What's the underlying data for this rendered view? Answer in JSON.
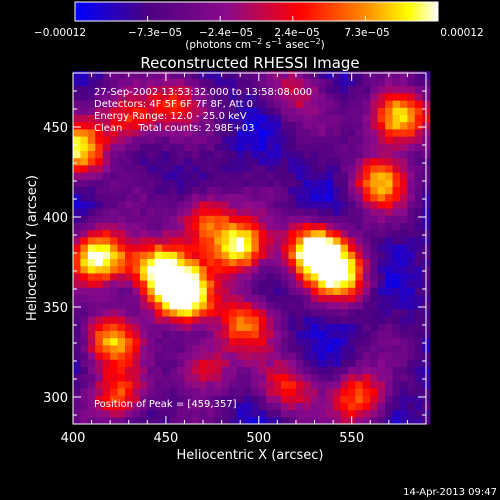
{
  "colorbar": {
    "ticks": [
      "−0.00012",
      "−7.3e−05",
      "−2.4e−05",
      "2.4e−05",
      "7.3e−05",
      "0.00012"
    ],
    "units_main": "(photons cm",
    "units_exp1": "−2",
    "units_mid": " s",
    "units_exp2": "−1",
    "units_tail": " asec",
    "units_exp3": "−2",
    "units_close": ")"
  },
  "chart_data": {
    "type": "heatmap",
    "title": "Reconstructed RHESSI Image",
    "xlabel": "Heliocentric X (arcsec)",
    "ylabel": "Heliocentric Y (arcsec)",
    "xlim": [
      400,
      590
    ],
    "ylim": [
      285,
      480
    ],
    "xticks": [
      "400",
      "450",
      "500",
      "550"
    ],
    "yticks": [
      "300",
      "350",
      "400",
      "450"
    ],
    "colormap": [
      "#0000ff",
      "#4b0082",
      "#8b0a8b",
      "#ff0000",
      "#ff8c00",
      "#ffff00",
      "#ffffff"
    ],
    "annotations": [
      "27-Sep-2002 13:53:32.000 to 13:58:08.000",
      "Detectors: 4F 5F 6F 7F 8F, Att 0",
      "Energy Range: 12.0 - 25.0 keV",
      "Clean     Total counts: 2.98E+03"
    ],
    "peak_label": "Position of Peak = [459,357]",
    "peak": [
      459,
      357
    ],
    "sources": [
      {
        "x": 459,
        "y": 357,
        "amp": 1.0
      },
      {
        "x": 415,
        "y": 378,
        "amp": 0.85
      },
      {
        "x": 445,
        "y": 372,
        "amp": 0.8
      },
      {
        "x": 490,
        "y": 383,
        "amp": 0.8
      },
      {
        "x": 530,
        "y": 382,
        "amp": 0.92
      },
      {
        "x": 545,
        "y": 368,
        "amp": 0.7
      },
      {
        "x": 470,
        "y": 400,
        "amp": 0.55
      },
      {
        "x": 492,
        "y": 342,
        "amp": 0.55
      },
      {
        "x": 420,
        "y": 332,
        "amp": 0.6
      },
      {
        "x": 425,
        "y": 300,
        "amp": 0.55
      },
      {
        "x": 403,
        "y": 437,
        "amp": 0.7
      },
      {
        "x": 430,
        "y": 455,
        "amp": 0.55
      },
      {
        "x": 575,
        "y": 455,
        "amp": 0.85
      },
      {
        "x": 565,
        "y": 420,
        "amp": 0.6
      },
      {
        "x": 555,
        "y": 300,
        "amp": 0.55
      },
      {
        "x": 470,
        "y": 318,
        "amp": 0.45
      },
      {
        "x": 515,
        "y": 305,
        "amp": 0.45
      },
      {
        "x": 455,
        "y": 465,
        "amp": 0.4
      },
      {
        "x": 520,
        "y": 470,
        "amp": 0.35
      }
    ]
  },
  "timestamp": "14-Apr-2013 09:47"
}
